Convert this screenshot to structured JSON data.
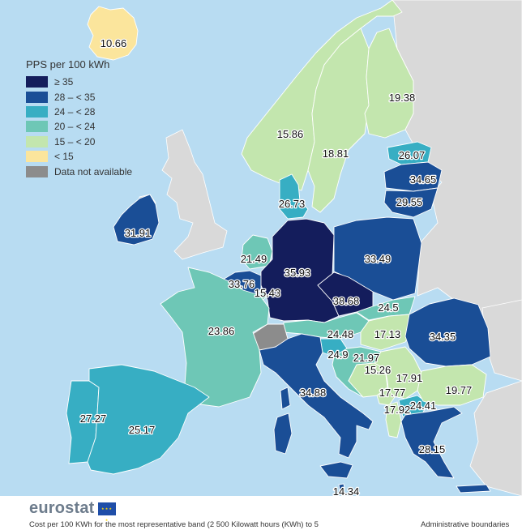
{
  "legend": {
    "title": "PPS per 100 kWh",
    "classes": [
      {
        "label": "≥ 35",
        "color": "#141d5c"
      },
      {
        "label": "28 – < 35",
        "color": "#1a4e96"
      },
      {
        "label": "24 – < 28",
        "color": "#37aec3"
      },
      {
        "label": "20 – < 24",
        "color": "#6ec7b6"
      },
      {
        "label": "15 – < 20",
        "color": "#c3e6ae"
      },
      {
        "label": "< 15",
        "color": "#fbe59c"
      },
      {
        "label": "Data not available",
        "color": "#8c8c8c"
      }
    ]
  },
  "colors": {
    "sea": "#b8dcf2",
    "non_member": "#d9d9d9"
  },
  "values": {
    "iceland": "10.66",
    "finland": "19.38",
    "norway": "15.86",
    "sweden": "18.81",
    "estonia": "26.07",
    "latvia": "34.65",
    "lithuania": "29.55",
    "denmark": "26.73",
    "ireland": "31.91",
    "netherlands": "21.49",
    "germany": "35.93",
    "poland": "33.49",
    "belgium": "33.76",
    "luxembourg": "15.43",
    "czechia": "38.68",
    "slovakia": "24.5",
    "france": "23.86",
    "austria": "24.48",
    "hungary": "17.13",
    "romania": "34.35",
    "slovenia": "24.9",
    "croatia": "21.97",
    "bosnia": "15.26",
    "serbia": "17.91",
    "montenegro": "17.77",
    "albania": "17.92",
    "north_macedonia": "24.41",
    "bulgaria": "19.77",
    "portugal": "27.27",
    "spain": "25.17",
    "italy": "34.88",
    "greece": "28.15",
    "malta": "14.34"
  },
  "footer": {
    "logo": "eurostat",
    "flag_icon": "eu-flag-icon",
    "caption": "Cost per 100 KWh for the most representative band (2 500 Kilowatt hours (KWh) to 5",
    "admin": "Administrative boundaries"
  }
}
